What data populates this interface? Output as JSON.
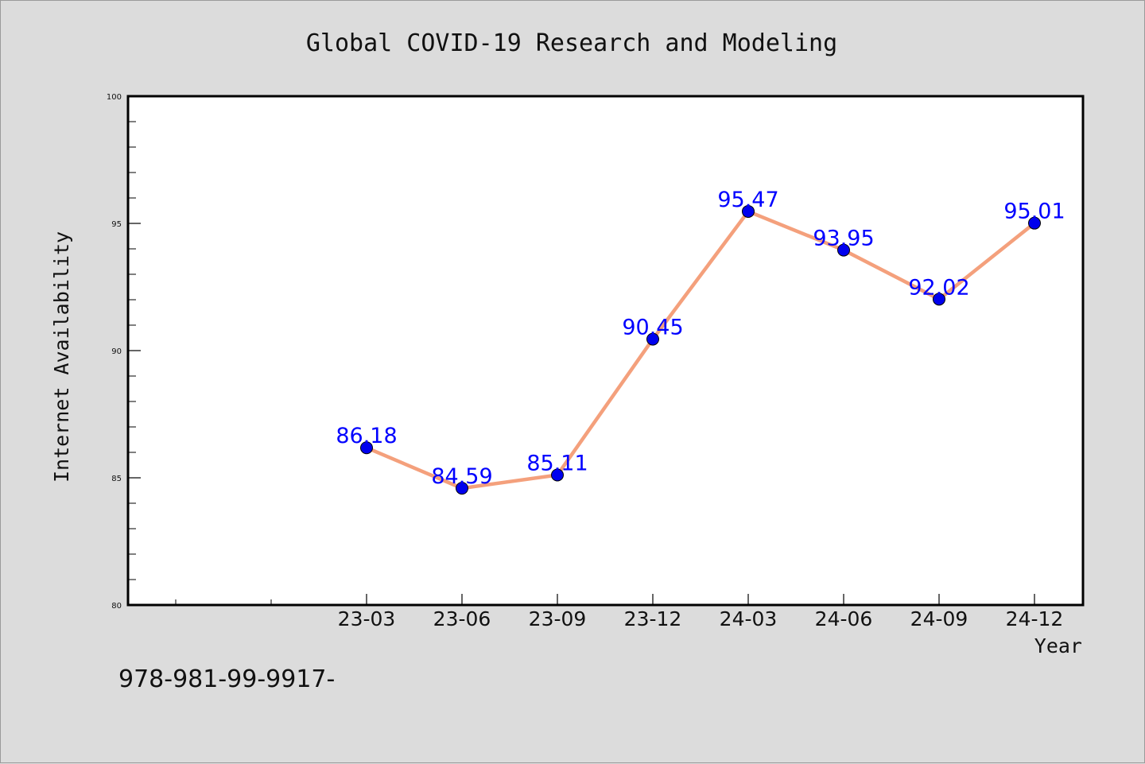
{
  "chart_data": {
    "type": "line",
    "title": "Global COVID-19 Research and Modeling",
    "xlabel": "Year",
    "ylabel": "Internet Availability",
    "categories": [
      "23-03",
      "23-06",
      "23-09",
      "23-12",
      "24-03",
      "24-06",
      "24-09",
      "24-12"
    ],
    "values": [
      86.18,
      84.59,
      85.11,
      90.45,
      95.47,
      93.95,
      92.02,
      95.01
    ],
    "data_labels": [
      "86.18",
      "84.59",
      "85.11",
      "90.45",
      "95.47",
      "93.95",
      "92.02",
      "95.01"
    ],
    "ylim": [
      80,
      100
    ],
    "yticks": [
      "80",
      "85",
      "90",
      "95",
      "100"
    ],
    "grid": false,
    "legend": "none",
    "line_color": "#f4a07c",
    "marker_color": "#0000ee",
    "label_color": "#0000ff"
  },
  "footer": {
    "isbn_text": "978-981-99-9917-"
  }
}
